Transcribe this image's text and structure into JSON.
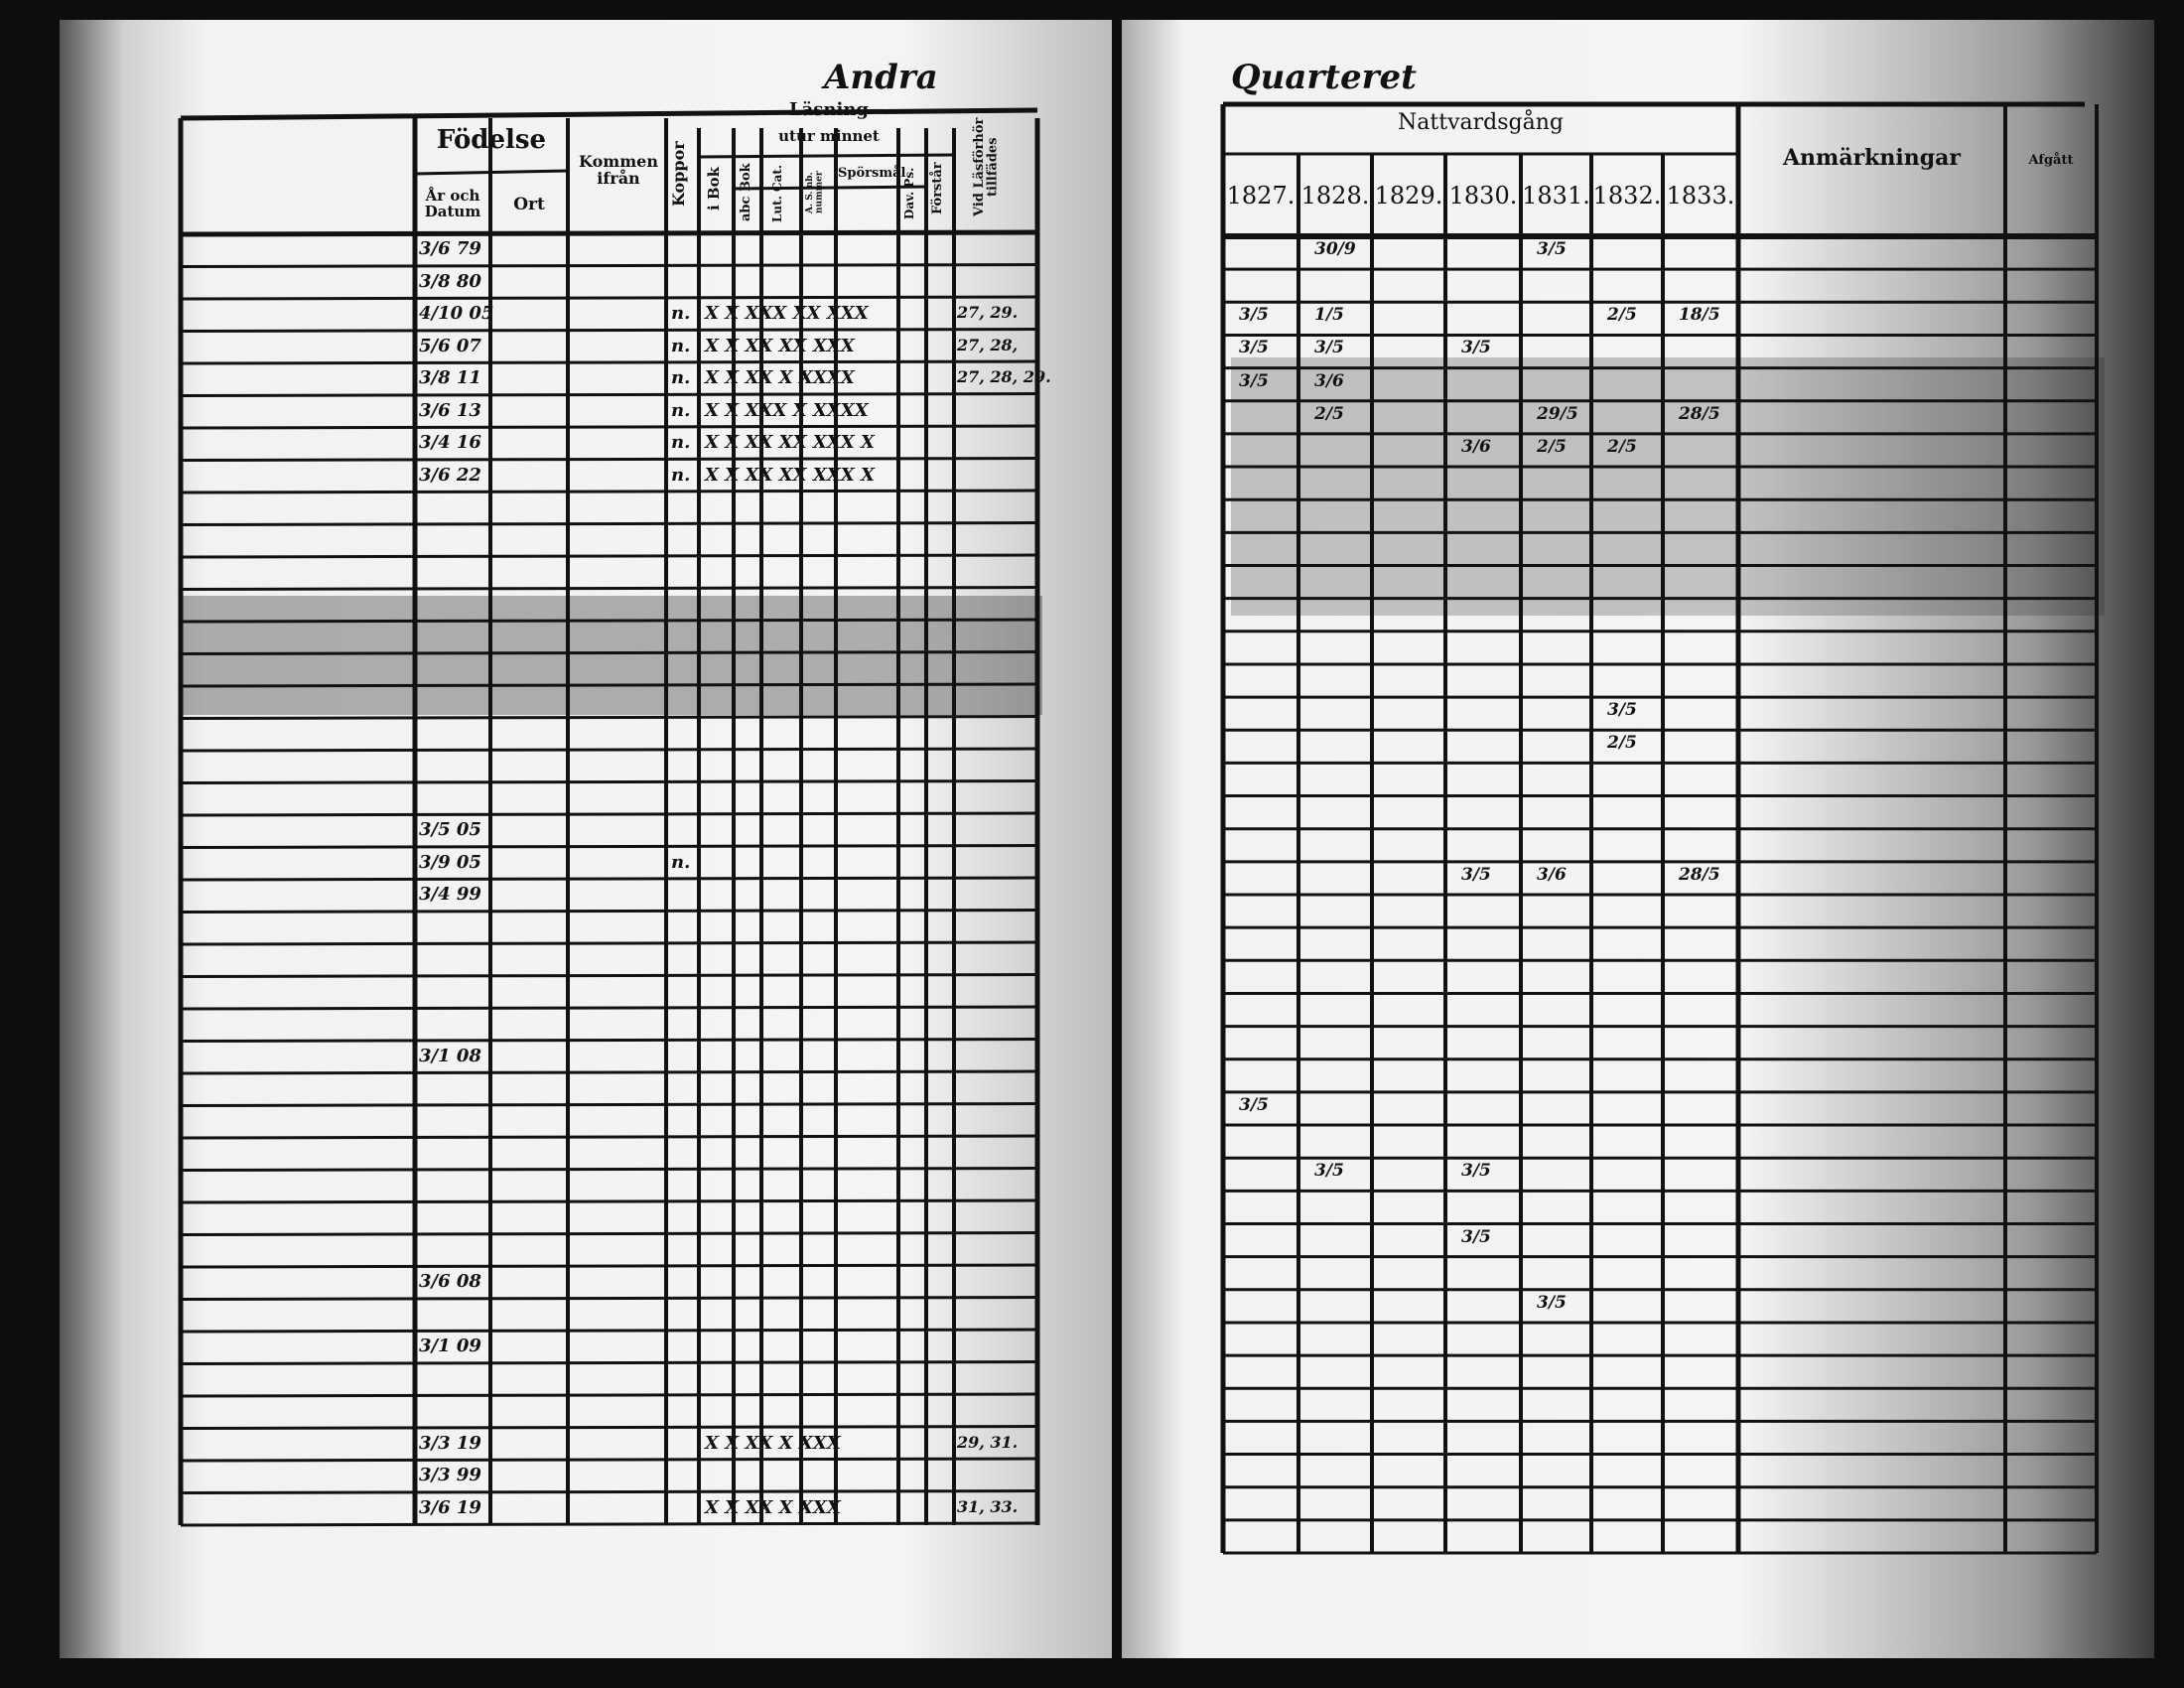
{
  "heading_left": "Andra",
  "heading_right": "Quarteret",
  "left_table": {
    "headers": {
      "fodelse": "Födelse",
      "ar_och_datum": "År och Datum",
      "ort": "Ort",
      "kommen_ifran": "Kommen ifrån",
      "koppor": "Koppor",
      "lasning": "Läsning",
      "utur_minnet": "utur minnet",
      "i_bok": "i Bok",
      "abc_bok": "abc Bok",
      "lut_cat": "Lut. Cat.",
      "a_s_nb": "A. S. nb. nummer",
      "sporsmal": "Spörsmål",
      "dav_ps": "Dav. Ps.",
      "forstar": "Förstår",
      "vid_lasforhor": "Vid Läsförhör tillfädes"
    },
    "rows": [
      {
        "row": 1,
        "date": "3/6 79"
      },
      {
        "row": 2,
        "date": "3/8 80"
      },
      {
        "row": 3,
        "date": "4/10 05",
        "koppor": "n.",
        "marks": "X X XXX XX XXX",
        "lasforhor": "27, 29."
      },
      {
        "row": 4,
        "date": "5/6 07",
        "koppor": "n.",
        "marks": "X X XX XX XXX",
        "lasforhor": "27, 28,"
      },
      {
        "row": 5,
        "date": "3/8 11",
        "koppor": "n.",
        "marks": "X X XX X XXXX",
        "lasforhor": "27, 28, 29."
      },
      {
        "row": 6,
        "date": "3/6 13",
        "koppor": "n.",
        "marks": "X X XXX X XXXX"
      },
      {
        "row": 7,
        "date": "3/4 16",
        "koppor": "n.",
        "marks": "X X XX XX XXX X"
      },
      {
        "row": 8,
        "date": "3/6 22",
        "koppor": "n.",
        "marks": "X X XX XX XXX X"
      },
      {
        "row": 19,
        "date": "3/5 05"
      },
      {
        "row": 20,
        "date": "3/9 05",
        "koppor": "n."
      },
      {
        "row": 21,
        "date": "3/4 99"
      },
      {
        "row": 26,
        "date": "3/1 08"
      },
      {
        "row": 33,
        "date": "3/6 08"
      },
      {
        "row": 35,
        "date": "3/1 09"
      },
      {
        "row": 38,
        "date": "3/3 19",
        "marks": "X X XX X XXX",
        "lasforhor": "29, 31."
      },
      {
        "row": 39,
        "date": "3/3 99"
      },
      {
        "row": 40,
        "date": "3/6 19",
        "marks": "X X XX X XXX",
        "lasforhor": "31, 33."
      }
    ]
  },
  "right_table": {
    "headers": {
      "nattvardsgang": "Nattvardsgång",
      "years": [
        "1827.",
        "1828.",
        "1829.",
        "1830.",
        "1831.",
        "1832.",
        "1833."
      ],
      "anmarkningar": "Anmärkningar",
      "afgatt": "Afgått"
    },
    "entries": [
      {
        "row": 1,
        "col": 1,
        "text": "30/9"
      },
      {
        "row": 1,
        "col": 4,
        "text": "3/5"
      },
      {
        "row": 3,
        "col": 0,
        "text": "3/5"
      },
      {
        "row": 3,
        "col": 1,
        "text": "1/5"
      },
      {
        "row": 3,
        "col": 5,
        "text": "2/5"
      },
      {
        "row": 3,
        "col": 6,
        "text": "18/5"
      },
      {
        "row": 4,
        "col": 0,
        "text": "3/5"
      },
      {
        "row": 4,
        "col": 1,
        "text": "3/5"
      },
      {
        "row": 4,
        "col": 3,
        "text": "3/5"
      },
      {
        "row": 5,
        "col": 0,
        "text": "3/5"
      },
      {
        "row": 5,
        "col": 1,
        "text": "3/6"
      },
      {
        "row": 6,
        "col": 1,
        "text": "2/5"
      },
      {
        "row": 6,
        "col": 4,
        "text": "29/5"
      },
      {
        "row": 6,
        "col": 6,
        "text": "28/5"
      },
      {
        "row": 7,
        "col": 3,
        "text": "3/6"
      },
      {
        "row": 7,
        "col": 4,
        "text": "2/5"
      },
      {
        "row": 7,
        "col": 5,
        "text": "2/5"
      },
      {
        "row": 15,
        "col": 5,
        "text": "3/5"
      },
      {
        "row": 16,
        "col": 5,
        "text": "2/5"
      },
      {
        "row": 20,
        "col": 3,
        "text": "3/5"
      },
      {
        "row": 20,
        "col": 4,
        "text": "3/6"
      },
      {
        "row": 20,
        "col": 6,
        "text": "28/5"
      },
      {
        "row": 27,
        "col": 0,
        "text": "3/5"
      },
      {
        "row": 29,
        "col": 1,
        "text": "3/5"
      },
      {
        "row": 29,
        "col": 3,
        "text": "3/5"
      },
      {
        "row": 31,
        "col": 3,
        "text": "3/5"
      },
      {
        "row": 33,
        "col": 4,
        "text": "3/5"
      }
    ]
  }
}
